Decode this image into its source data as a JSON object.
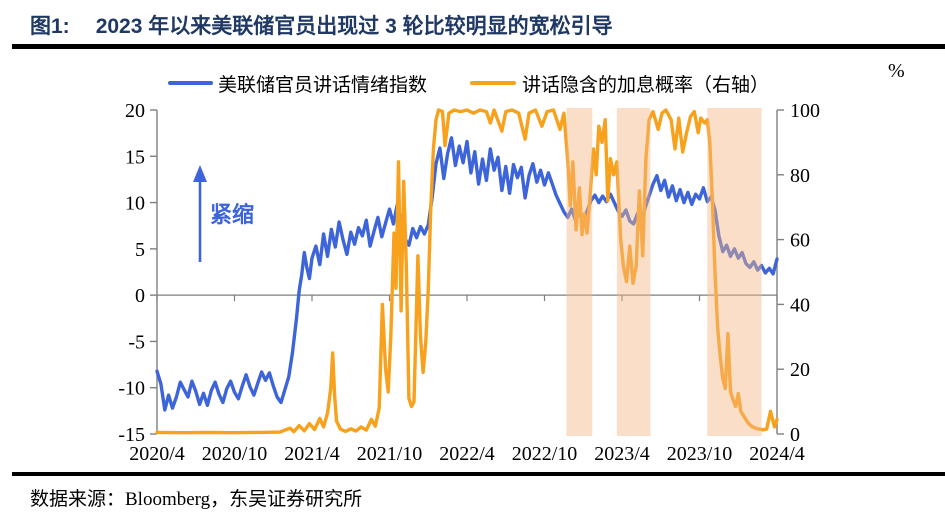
{
  "header": {
    "figure_label": "图1:",
    "title": "2023 年以来美联储官员出现过 3 轮比较明显的宽松引导"
  },
  "legend": {
    "items": [
      {
        "label": "美联储官员讲话情绪指数",
        "color": "#3D65D9"
      },
      {
        "label": "讲话隐含的加息概率（右轴）",
        "color": "#F7A11C"
      }
    ]
  },
  "annotation": {
    "text": "紧缩",
    "color": "#3D65D9"
  },
  "footer": {
    "source": "数据来源：Bloomberg，东吴证券研究所"
  },
  "colors": {
    "title_navy": "#1F3864",
    "axis_gray": "#7F7F7F",
    "band_fill": "#F3B583",
    "blue_line": "#3D65D9",
    "orange_line": "#F7A11C"
  },
  "chart_data": {
    "type": "line",
    "title": "2023 年以来美联储官员出现过 3 轮比较明显的宽松引导",
    "x_unit": "months since 2020/4",
    "x_tick_labels": [
      "2020/4",
      "2020/10",
      "2021/4",
      "2021/10",
      "2022/4",
      "2022/10",
      "2023/4",
      "2023/10",
      "2024/4"
    ],
    "x_tick_months": [
      0,
      6,
      12,
      18,
      24,
      30,
      36,
      42,
      48
    ],
    "xlim": [
      0,
      48
    ],
    "left_axis": {
      "ticks": [
        20,
        15,
        10,
        5,
        0,
        -5,
        -10,
        -15
      ],
      "min": -15,
      "max": 20
    },
    "right_axis": {
      "ticks": [
        100,
        80,
        60,
        40,
        20,
        0
      ],
      "min": 0,
      "max": 100,
      "unit": "%"
    },
    "grid": "off",
    "legend_position": "top",
    "highlight_bands_months": [
      [
        31.7,
        33.7
      ],
      [
        35.6,
        38.2
      ],
      [
        42.6,
        46.8
      ]
    ],
    "series": [
      {
        "name": "美联储官员讲话情绪指数",
        "axis": "left",
        "color": "#3D65D9",
        "points": [
          [
            0,
            -8.2
          ],
          [
            0.3,
            -9.6
          ],
          [
            0.6,
            -12.4
          ],
          [
            0.9,
            -10.8
          ],
          [
            1.2,
            -12.2
          ],
          [
            1.5,
            -11.0
          ],
          [
            1.8,
            -9.4
          ],
          [
            2.1,
            -10.2
          ],
          [
            2.4,
            -11.0
          ],
          [
            2.7,
            -9.3
          ],
          [
            3.0,
            -10.4
          ],
          [
            3.3,
            -11.8
          ],
          [
            3.6,
            -10.6
          ],
          [
            3.9,
            -11.9
          ],
          [
            4.2,
            -10.3
          ],
          [
            4.5,
            -9.4
          ],
          [
            4.8,
            -10.7
          ],
          [
            5.1,
            -11.6
          ],
          [
            5.4,
            -10.1
          ],
          [
            5.7,
            -9.3
          ],
          [
            6.0,
            -10.5
          ],
          [
            6.3,
            -11.2
          ],
          [
            6.6,
            -9.8
          ],
          [
            6.9,
            -8.6
          ],
          [
            7.2,
            -9.9
          ],
          [
            7.5,
            -10.8
          ],
          [
            7.8,
            -9.5
          ],
          [
            8.1,
            -8.3
          ],
          [
            8.4,
            -9.2
          ],
          [
            8.7,
            -8.4
          ],
          [
            9.0,
            -9.8
          ],
          [
            9.3,
            -11.0
          ],
          [
            9.6,
            -11.6
          ],
          [
            9.9,
            -10.2
          ],
          [
            10.2,
            -8.8
          ],
          [
            10.5,
            -6.1
          ],
          [
            10.8,
            -2.5
          ],
          [
            11.0,
            0.4
          ],
          [
            11.2,
            2.2
          ],
          [
            11.4,
            4.6
          ],
          [
            11.6,
            3.0
          ],
          [
            11.8,
            1.8
          ],
          [
            12.0,
            4.0
          ],
          [
            12.3,
            5.3
          ],
          [
            12.6,
            3.3
          ],
          [
            12.9,
            6.6
          ],
          [
            13.2,
            4.2
          ],
          [
            13.5,
            7.1
          ],
          [
            13.8,
            5.2
          ],
          [
            14.1,
            7.9
          ],
          [
            14.4,
            6.0
          ],
          [
            14.7,
            4.4
          ],
          [
            15.0,
            6.8
          ],
          [
            15.3,
            5.5
          ],
          [
            15.6,
            7.3
          ],
          [
            15.9,
            6.4
          ],
          [
            16.2,
            8.1
          ],
          [
            16.5,
            5.3
          ],
          [
            16.8,
            6.9
          ],
          [
            17.1,
            8.4
          ],
          [
            17.4,
            6.3
          ],
          [
            17.7,
            7.8
          ],
          [
            18.0,
            9.3
          ],
          [
            18.3,
            7.7
          ],
          [
            18.6,
            9.8
          ],
          [
            18.9,
            8.0
          ],
          [
            19.2,
            6.1
          ],
          [
            19.5,
            5.4
          ],
          [
            19.8,
            7.2
          ],
          [
            20.1,
            6.2
          ],
          [
            20.4,
            7.4
          ],
          [
            20.7,
            6.6
          ],
          [
            21.0,
            7.6
          ],
          [
            21.3,
            10.5
          ],
          [
            21.6,
            14.2
          ],
          [
            21.9,
            15.9
          ],
          [
            22.2,
            12.6
          ],
          [
            22.5,
            15.3
          ],
          [
            22.8,
            17.0
          ],
          [
            23.1,
            14.0
          ],
          [
            23.4,
            16.1
          ],
          [
            23.7,
            14.3
          ],
          [
            24.0,
            16.6
          ],
          [
            24.3,
            13.2
          ],
          [
            24.6,
            15.5
          ],
          [
            24.9,
            12.0
          ],
          [
            25.2,
            14.7
          ],
          [
            25.5,
            12.4
          ],
          [
            25.8,
            15.8
          ],
          [
            26.1,
            13.5
          ],
          [
            26.4,
            14.9
          ],
          [
            26.7,
            11.3
          ],
          [
            27.0,
            13.9
          ],
          [
            27.3,
            11.0
          ],
          [
            27.6,
            14.1
          ],
          [
            27.9,
            12.7
          ],
          [
            28.2,
            13.8
          ],
          [
            28.5,
            10.5
          ],
          [
            28.8,
            12.9
          ],
          [
            29.1,
            14.2
          ],
          [
            29.4,
            12.2
          ],
          [
            29.7,
            13.5
          ],
          [
            30.0,
            11.9
          ],
          [
            30.3,
            13.2
          ],
          [
            30.6,
            12.0
          ],
          [
            30.9,
            10.8
          ],
          [
            31.2,
            9.9
          ],
          [
            31.5,
            9.0
          ],
          [
            31.8,
            8.4
          ],
          [
            32.1,
            9.3
          ],
          [
            32.4,
            8.1
          ],
          [
            32.7,
            8.9
          ],
          [
            33.0,
            8.2
          ],
          [
            33.3,
            9.1
          ],
          [
            33.6,
            10.2
          ],
          [
            33.9,
            10.8
          ],
          [
            34.2,
            10.0
          ],
          [
            34.5,
            10.7
          ],
          [
            34.8,
            10.1
          ],
          [
            35.1,
            10.9
          ],
          [
            35.4,
            10.0
          ],
          [
            35.7,
            9.1
          ],
          [
            36.0,
            8.5
          ],
          [
            36.3,
            9.2
          ],
          [
            36.6,
            8.0
          ],
          [
            36.9,
            7.7
          ],
          [
            37.2,
            8.8
          ],
          [
            37.5,
            8.1
          ],
          [
            37.8,
            9.5
          ],
          [
            38.1,
            10.7
          ],
          [
            38.4,
            12.0
          ],
          [
            38.7,
            12.9
          ],
          [
            39.0,
            11.3
          ],
          [
            39.3,
            12.4
          ],
          [
            39.6,
            10.6
          ],
          [
            39.9,
            11.8
          ],
          [
            40.2,
            10.2
          ],
          [
            40.5,
            11.4
          ],
          [
            40.8,
            10.0
          ],
          [
            41.1,
            11.1
          ],
          [
            41.4,
            9.8
          ],
          [
            41.7,
            10.9
          ],
          [
            42.0,
            10.4
          ],
          [
            42.3,
            11.6
          ],
          [
            42.6,
            10.1
          ],
          [
            42.9,
            10.6
          ],
          [
            43.2,
            9.2
          ],
          [
            43.5,
            6.4
          ],
          [
            43.8,
            4.7
          ],
          [
            44.1,
            5.4
          ],
          [
            44.4,
            4.2
          ],
          [
            44.7,
            5.0
          ],
          [
            45.0,
            4.0
          ],
          [
            45.3,
            4.6
          ],
          [
            45.6,
            3.4
          ],
          [
            45.9,
            3.0
          ],
          [
            46.2,
            3.6
          ],
          [
            46.5,
            2.7
          ],
          [
            46.8,
            3.2
          ],
          [
            47.1,
            2.4
          ],
          [
            47.4,
            2.9
          ],
          [
            47.7,
            2.3
          ],
          [
            48.0,
            3.9
          ]
        ]
      },
      {
        "name": "讲话隐含的加息概率（右轴）",
        "axis": "right",
        "color": "#F7A11C",
        "points": [
          [
            0,
            0.5
          ],
          [
            2,
            0.4
          ],
          [
            4,
            0.5
          ],
          [
            6,
            0.4
          ],
          [
            8,
            0.5
          ],
          [
            9.5,
            0.6
          ],
          [
            10.3,
            1.8
          ],
          [
            10.6,
            0.7
          ],
          [
            11.0,
            2.6
          ],
          [
            11.4,
            1.0
          ],
          [
            11.8,
            3.2
          ],
          [
            12.2,
            1.4
          ],
          [
            12.6,
            4.8
          ],
          [
            12.9,
            2.2
          ],
          [
            13.2,
            6.4
          ],
          [
            13.45,
            14.0
          ],
          [
            13.6,
            25.0
          ],
          [
            13.75,
            12.0
          ],
          [
            13.9,
            4.0
          ],
          [
            14.2,
            1.5
          ],
          [
            14.6,
            0.8
          ],
          [
            15.0,
            1.6
          ],
          [
            15.4,
            0.9
          ],
          [
            15.8,
            2.2
          ],
          [
            16.2,
            1.2
          ],
          [
            16.6,
            4.5
          ],
          [
            16.9,
            2.4
          ],
          [
            17.2,
            8.0
          ],
          [
            17.45,
            40.0
          ],
          [
            17.7,
            20.0
          ],
          [
            17.9,
            13.0
          ],
          [
            18.1,
            30.0
          ],
          [
            18.35,
            62.0
          ],
          [
            18.5,
            45.0
          ],
          [
            18.7,
            84.0
          ],
          [
            18.9,
            38.0
          ],
          [
            19.1,
            78.0
          ],
          [
            19.3,
            52.0
          ],
          [
            19.5,
            11.0
          ],
          [
            19.7,
            8.5
          ],
          [
            19.9,
            10.0
          ],
          [
            20.2,
            55.0
          ],
          [
            20.4,
            30.0
          ],
          [
            20.6,
            19.0
          ],
          [
            20.8,
            28.0
          ],
          [
            21.0,
            45.0
          ],
          [
            21.2,
            70.0
          ],
          [
            21.4,
            88.0
          ],
          [
            21.6,
            97.0
          ],
          [
            21.8,
            100.0
          ],
          [
            22.1,
            99.5
          ],
          [
            22.3,
            89.0
          ],
          [
            22.6,
            99.0
          ],
          [
            23.0,
            100.0
          ],
          [
            23.5,
            99.5
          ],
          [
            24.0,
            100.0
          ],
          [
            24.5,
            99.0
          ],
          [
            25.0,
            100.0
          ],
          [
            25.5,
            99.5
          ],
          [
            25.8,
            96.0
          ],
          [
            26.1,
            100.0
          ],
          [
            26.7,
            93.5
          ],
          [
            27.0,
            99.5
          ],
          [
            27.5,
            100.0
          ],
          [
            28.0,
            99.0
          ],
          [
            28.5,
            91.0
          ],
          [
            28.8,
            99.0
          ],
          [
            29.3,
            100.0
          ],
          [
            29.8,
            95.0
          ],
          [
            30.2,
            99.5
          ],
          [
            30.7,
            100.0
          ],
          [
            31.2,
            94.0
          ],
          [
            31.5,
            99.0
          ],
          [
            31.8,
            84.0
          ],
          [
            32.0,
            70.5
          ],
          [
            32.2,
            84.0
          ],
          [
            32.45,
            63.0
          ],
          [
            32.7,
            76.0
          ],
          [
            32.9,
            61.5
          ],
          [
            33.1,
            68.0
          ],
          [
            33.3,
            62.0
          ],
          [
            33.55,
            75.0
          ],
          [
            33.8,
            88.0
          ],
          [
            34.0,
            80.0
          ],
          [
            34.2,
            95.0
          ],
          [
            34.45,
            90.0
          ],
          [
            34.7,
            97.0
          ],
          [
            34.9,
            72.0
          ],
          [
            35.1,
            85.0
          ],
          [
            35.35,
            80.0
          ],
          [
            35.6,
            84.0
          ],
          [
            35.9,
            60.0
          ],
          [
            36.1,
            52.0
          ],
          [
            36.35,
            47.0
          ],
          [
            36.6,
            58.0
          ],
          [
            36.85,
            46.5
          ],
          [
            37.1,
            52.0
          ],
          [
            37.35,
            75.0
          ],
          [
            37.6,
            55.0
          ],
          [
            37.85,
            85.0
          ],
          [
            38.1,
            97.0
          ],
          [
            38.4,
            99.5
          ],
          [
            38.8,
            94.0
          ],
          [
            39.1,
            99.0
          ],
          [
            39.4,
            100.0
          ],
          [
            39.8,
            97.0
          ],
          [
            40.1,
            88.0
          ],
          [
            40.4,
            97.5
          ],
          [
            40.7,
            87.0
          ],
          [
            41.0,
            93.0
          ],
          [
            41.3,
            98.0
          ],
          [
            41.6,
            99.5
          ],
          [
            41.9,
            93.0
          ],
          [
            42.1,
            97.5
          ],
          [
            42.4,
            96.0
          ],
          [
            42.6,
            97.0
          ],
          [
            42.8,
            90.0
          ],
          [
            43.0,
            72.0
          ],
          [
            43.2,
            50.0
          ],
          [
            43.4,
            33.0
          ],
          [
            43.6,
            24.0
          ],
          [
            43.8,
            17.0
          ],
          [
            44.0,
            14.0
          ],
          [
            44.2,
            31.0
          ],
          [
            44.4,
            13.0
          ],
          [
            44.6,
            10.5
          ],
          [
            44.8,
            8.5
          ],
          [
            45.0,
            12.5
          ],
          [
            45.2,
            7.0
          ],
          [
            45.5,
            5.0
          ],
          [
            45.8,
            3.2
          ],
          [
            46.1,
            2.2
          ],
          [
            46.5,
            1.6
          ],
          [
            46.9,
            1.3
          ],
          [
            47.2,
            1.5
          ],
          [
            47.5,
            7.0
          ],
          [
            47.8,
            2.2
          ],
          [
            48.0,
            4.5
          ]
        ]
      }
    ]
  }
}
